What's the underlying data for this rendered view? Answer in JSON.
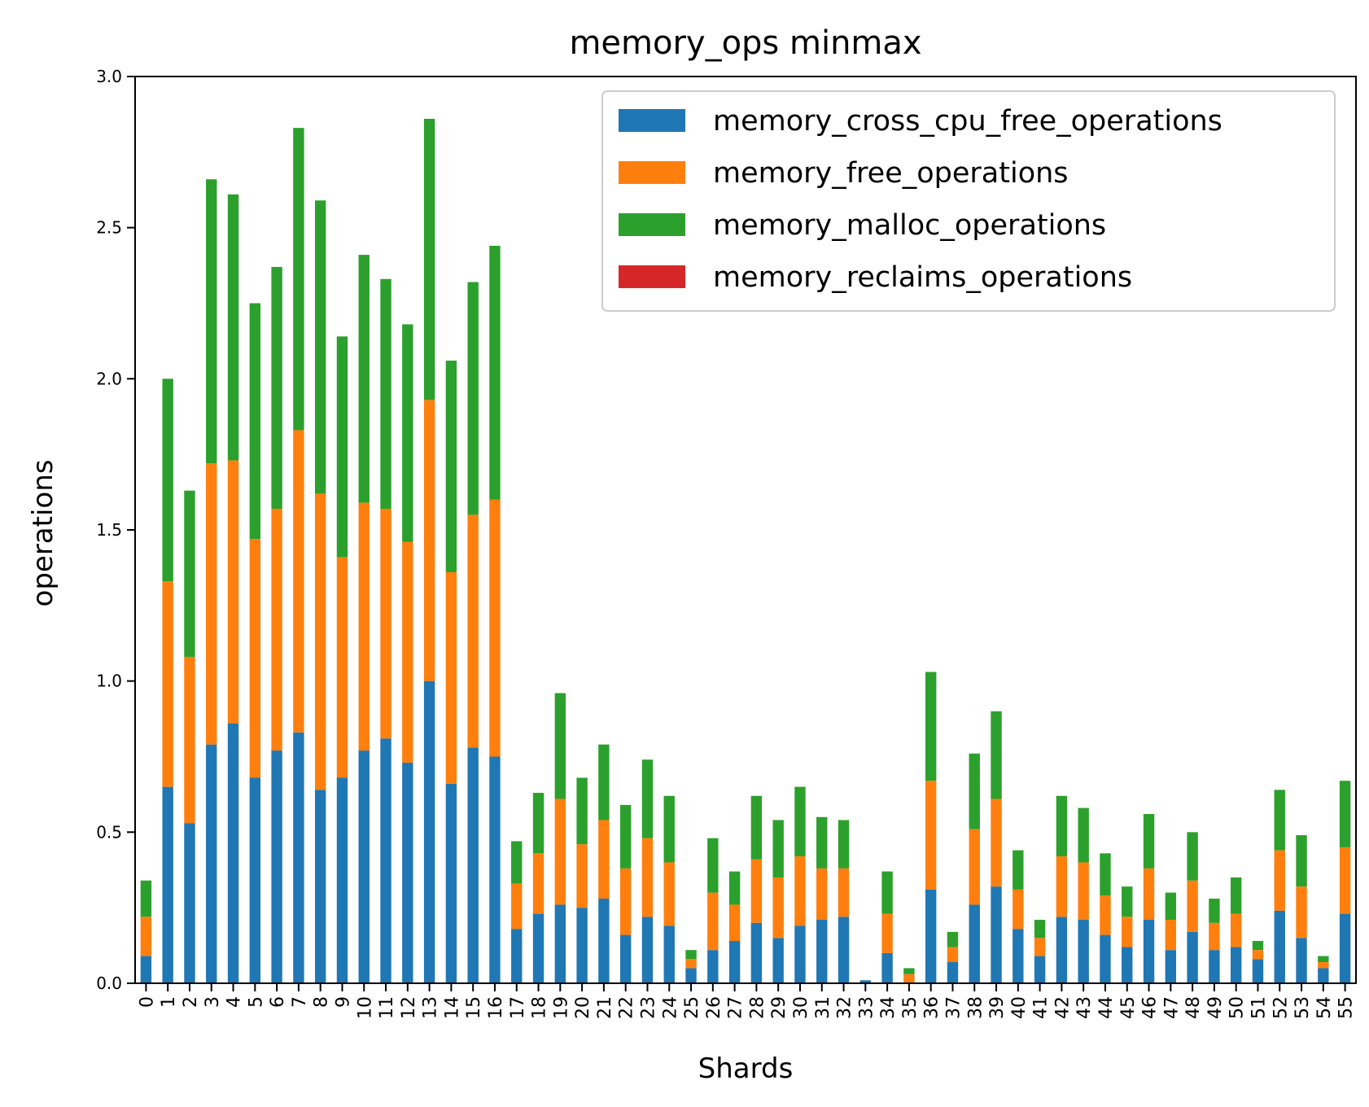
{
  "chart_data": {
    "type": "bar",
    "stacked": true,
    "title": "memory_ops minmax",
    "xlabel": "Shards",
    "ylabel": "operations",
    "ylim": [
      0,
      3.0
    ],
    "yticks": [
      "0.0",
      "0.5",
      "1.0",
      "1.5",
      "2.0",
      "2.5",
      "3.0"
    ],
    "categories": [
      "0",
      "1",
      "2",
      "3",
      "4",
      "5",
      "6",
      "7",
      "8",
      "9",
      "10",
      "11",
      "12",
      "13",
      "14",
      "15",
      "16",
      "17",
      "18",
      "19",
      "20",
      "21",
      "22",
      "23",
      "24",
      "25",
      "26",
      "27",
      "28",
      "29",
      "30",
      "31",
      "32",
      "33",
      "34",
      "35",
      "36",
      "37",
      "38",
      "39",
      "40",
      "41",
      "42",
      "43",
      "44",
      "45",
      "46",
      "47",
      "48",
      "49",
      "50",
      "51",
      "52",
      "53",
      "54",
      "55"
    ],
    "legend_position": "top-right",
    "grid": false,
    "series": [
      {
        "name": "memory_cross_cpu_free_operations",
        "color": "#1f77b4",
        "values": [
          0.09,
          0.65,
          0.53,
          0.79,
          0.86,
          0.68,
          0.77,
          0.83,
          0.64,
          0.68,
          0.77,
          0.81,
          0.73,
          1.0,
          0.66,
          0.78,
          0.75,
          0.18,
          0.23,
          0.26,
          0.25,
          0.28,
          0.16,
          0.22,
          0.19,
          0.05,
          0.11,
          0.14,
          0.2,
          0.15,
          0.19,
          0.21,
          0.22,
          0.01,
          0.1,
          0.0,
          0.31,
          0.07,
          0.26,
          0.32,
          0.18,
          0.09,
          0.22,
          0.21,
          0.16,
          0.12,
          0.21,
          0.11,
          0.17,
          0.11,
          0.12,
          0.08,
          0.24,
          0.15,
          0.05,
          0.23
        ]
      },
      {
        "name": "memory_free_operations",
        "color": "#ff7f0e",
        "values": [
          0.13,
          0.68,
          0.55,
          0.93,
          0.87,
          0.79,
          0.8,
          1.0,
          0.98,
          0.73,
          0.82,
          0.76,
          0.73,
          0.93,
          0.7,
          0.77,
          0.85,
          0.15,
          0.2,
          0.35,
          0.21,
          0.26,
          0.22,
          0.26,
          0.21,
          0.03,
          0.19,
          0.12,
          0.21,
          0.2,
          0.23,
          0.17,
          0.16,
          0.0,
          0.13,
          0.03,
          0.36,
          0.05,
          0.25,
          0.29,
          0.13,
          0.06,
          0.2,
          0.19,
          0.13,
          0.1,
          0.17,
          0.1,
          0.17,
          0.09,
          0.11,
          0.03,
          0.2,
          0.17,
          0.02,
          0.22
        ]
      },
      {
        "name": "memory_malloc_operations",
        "color": "#2ca02c",
        "values": [
          0.12,
          0.67,
          0.55,
          0.94,
          0.88,
          0.78,
          0.8,
          1.0,
          0.97,
          0.73,
          0.82,
          0.76,
          0.72,
          0.93,
          0.7,
          0.77,
          0.84,
          0.14,
          0.2,
          0.35,
          0.22,
          0.25,
          0.21,
          0.26,
          0.22,
          0.03,
          0.18,
          0.11,
          0.21,
          0.19,
          0.23,
          0.17,
          0.16,
          0.0,
          0.14,
          0.02,
          0.36,
          0.05,
          0.25,
          0.29,
          0.13,
          0.06,
          0.2,
          0.18,
          0.14,
          0.1,
          0.18,
          0.09,
          0.16,
          0.08,
          0.12,
          0.03,
          0.2,
          0.17,
          0.02,
          0.22
        ]
      },
      {
        "name": "memory_reclaims_operations",
        "color": "#d62728",
        "values": [
          0,
          0,
          0,
          0,
          0,
          0,
          0,
          0,
          0,
          0,
          0,
          0,
          0,
          0,
          0,
          0,
          0,
          0,
          0,
          0,
          0,
          0,
          0,
          0,
          0,
          0,
          0,
          0,
          0,
          0,
          0,
          0,
          0,
          0,
          0,
          0,
          0,
          0,
          0,
          0,
          0,
          0,
          0,
          0,
          0,
          0,
          0,
          0,
          0,
          0,
          0,
          0,
          0,
          0,
          0,
          0
        ]
      }
    ]
  }
}
